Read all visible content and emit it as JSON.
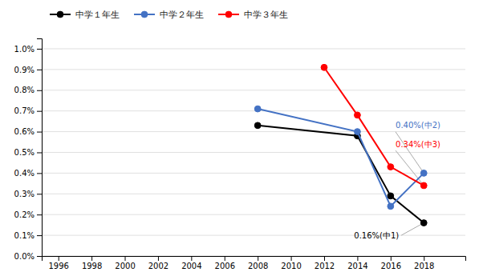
{
  "chart_data": {
    "type": "line",
    "series": [
      {
        "name": "中学１年生",
        "color": "#000000",
        "marker": "circle",
        "x": [
          2008,
          2014,
          2016,
          2018
        ],
        "values": [
          0.0063,
          0.0058,
          0.0029,
          0.0016
        ]
      },
      {
        "name": "中学２年生",
        "color": "#4472C4",
        "marker": "circle",
        "x": [
          2008,
          2014,
          2016,
          2018
        ],
        "values": [
          0.0071,
          0.006,
          0.0024,
          0.004
        ]
      },
      {
        "name": "中学３年生",
        "color": "#FF0000",
        "marker": "circle",
        "x": [
          2012,
          2014,
          2016,
          2018
        ],
        "values": [
          0.0091,
          0.0068,
          0.0043,
          0.0034
        ]
      }
    ],
    "annotations": [
      {
        "text": "0.16%(中1)",
        "x": 2013.8,
        "y": 0.001,
        "color": "#000000",
        "target_x": 2018,
        "target_y": 0.0016
      },
      {
        "text": "0.40%(中2)",
        "x": 2016.3,
        "y": 0.0063,
        "color": "#4472C4",
        "target_x": 2018,
        "target_y": 0.004
      },
      {
        "text": "0.34%(中3)",
        "x": 2016.3,
        "y": 0.0054,
        "color": "#FF0000",
        "target_x": 2018,
        "target_y": 0.0034
      }
    ],
    "xlim": [
      1995,
      2020.5
    ],
    "ylim": [
      0.0,
      0.0105
    ],
    "xticks": [
      1996,
      1998,
      2000,
      2002,
      2004,
      2006,
      2008,
      2010,
      2012,
      2014,
      2016,
      2018
    ],
    "yticks": [
      {
        "value": 0.0,
        "label": "0.0%"
      },
      {
        "value": 0.001,
        "label": "0.1%"
      },
      {
        "value": 0.002,
        "label": "0.2%"
      },
      {
        "value": 0.003,
        "label": "0.3%"
      },
      {
        "value": 0.004,
        "label": "0.4%"
      },
      {
        "value": 0.005,
        "label": "0.5%"
      },
      {
        "value": 0.006,
        "label": "0.6%"
      },
      {
        "value": 0.007,
        "label": "0.7%"
      },
      {
        "value": 0.008,
        "label": "0.8%"
      },
      {
        "value": 0.009,
        "label": "0.9%"
      },
      {
        "value": 0.01,
        "label": "1.0%"
      }
    ],
    "grid": true,
    "legend": "upper left"
  }
}
